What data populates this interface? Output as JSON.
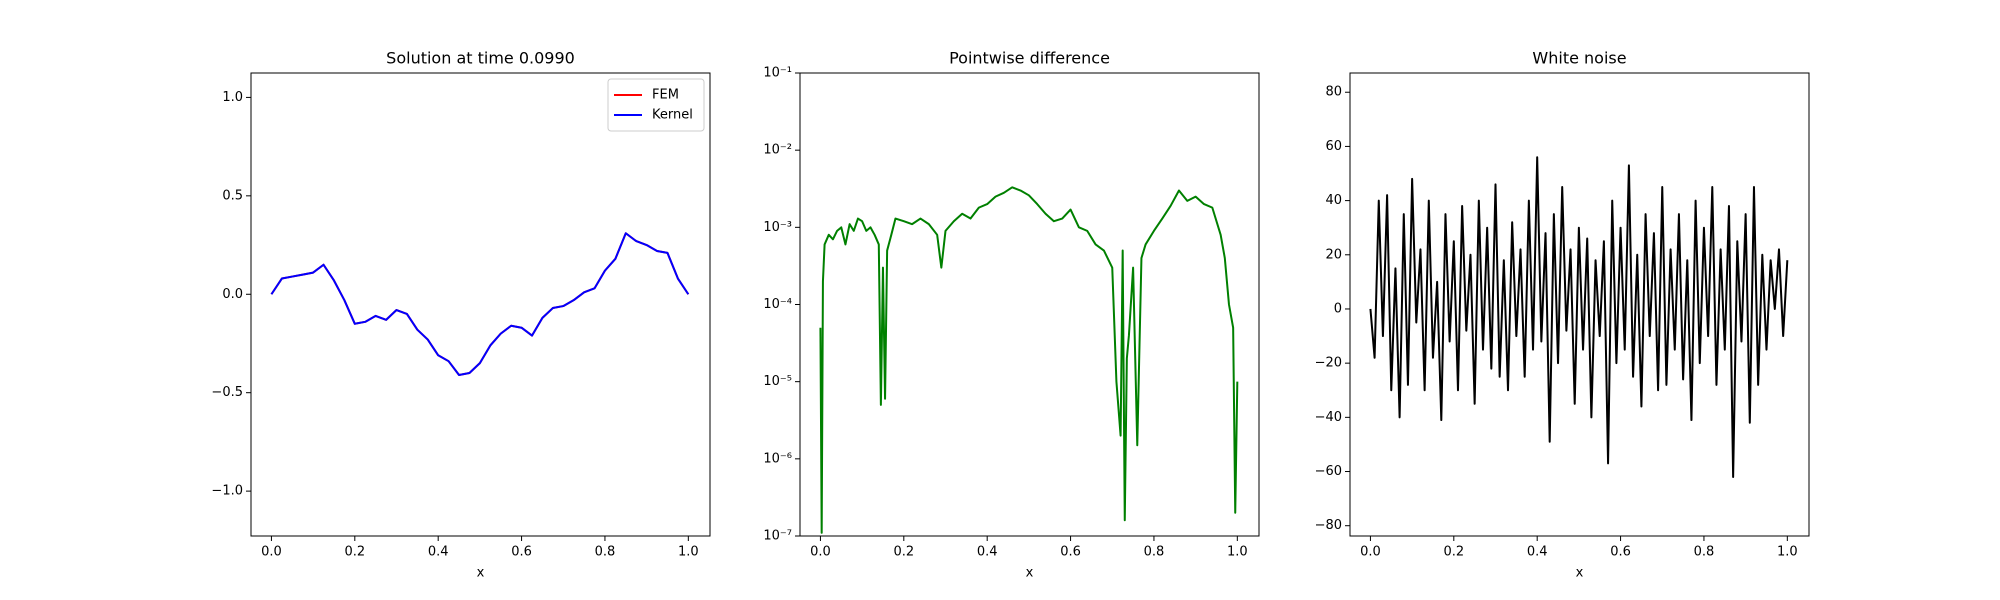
{
  "chart_data": [
    {
      "type": "line",
      "title": "Solution at time 0.0990",
      "xlabel": "x",
      "x": [
        0,
        0.025,
        0.05,
        0.075,
        0.1,
        0.125,
        0.15,
        0.175,
        0.2,
        0.225,
        0.25,
        0.275,
        0.3,
        0.325,
        0.35,
        0.375,
        0.4,
        0.425,
        0.45,
        0.475,
        0.5,
        0.525,
        0.55,
        0.575,
        0.6,
        0.625,
        0.65,
        0.675,
        0.7,
        0.725,
        0.75,
        0.775,
        0.8,
        0.825,
        0.85,
        0.875,
        0.9,
        0.925,
        0.95,
        0.975,
        1.0
      ],
      "series": [
        {
          "name": "FEM",
          "color": "#ff0000",
          "values": [
            0,
            0.08,
            0.09,
            0.1,
            0.11,
            0.15,
            0.07,
            -0.03,
            -0.15,
            -0.14,
            -0.11,
            -0.13,
            -0.08,
            -0.1,
            -0.18,
            -0.23,
            -0.31,
            -0.34,
            -0.41,
            -0.4,
            -0.35,
            -0.26,
            -0.2,
            -0.16,
            -0.17,
            -0.21,
            -0.12,
            -0.07,
            -0.06,
            -0.03,
            0.01,
            0.03,
            0.12,
            0.18,
            0.31,
            0.27,
            0.25,
            0.22,
            0.21,
            0.08,
            0
          ]
        },
        {
          "name": "Kernel",
          "color": "#0000ff",
          "values": [
            0,
            0.08,
            0.09,
            0.1,
            0.11,
            0.15,
            0.07,
            -0.03,
            -0.15,
            -0.14,
            -0.11,
            -0.13,
            -0.08,
            -0.1,
            -0.18,
            -0.23,
            -0.31,
            -0.34,
            -0.41,
            -0.4,
            -0.35,
            -0.26,
            -0.2,
            -0.16,
            -0.17,
            -0.21,
            -0.12,
            -0.07,
            -0.06,
            -0.03,
            0.01,
            0.03,
            0.12,
            0.18,
            0.31,
            0.27,
            0.25,
            0.22,
            0.21,
            0.08,
            0
          ]
        }
      ],
      "xlim": [
        -0.049,
        1.052
      ],
      "ylim": [
        -1.228,
        1.124
      ],
      "xticks": [
        {
          "value": 0,
          "label": "0.0"
        },
        {
          "value": 0.2,
          "label": "0.2"
        },
        {
          "value": 0.4,
          "label": "0.4"
        },
        {
          "value": 0.6,
          "label": "0.6"
        },
        {
          "value": 0.8,
          "label": "0.8"
        },
        {
          "value": 1,
          "label": "1.0"
        }
      ],
      "yticks": [
        {
          "value": -1,
          "label": "−1.0"
        },
        {
          "value": -0.5,
          "label": "−0.5"
        },
        {
          "value": 0,
          "label": "0.0"
        },
        {
          "value": 0.5,
          "label": "0.5"
        },
        {
          "value": 1,
          "label": "1.0"
        }
      ],
      "legend": "upper right"
    },
    {
      "type": "line",
      "title": "Pointwise difference",
      "xlabel": "x",
      "log_y": true,
      "x": [
        0,
        0.003,
        0.006,
        0.01,
        0.02,
        0.03,
        0.04,
        0.05,
        0.06,
        0.07,
        0.08,
        0.09,
        0.1,
        0.11,
        0.12,
        0.13,
        0.14,
        0.145,
        0.15,
        0.155,
        0.16,
        0.17,
        0.18,
        0.2,
        0.22,
        0.24,
        0.26,
        0.28,
        0.29,
        0.3,
        0.32,
        0.34,
        0.36,
        0.38,
        0.4,
        0.42,
        0.44,
        0.46,
        0.48,
        0.5,
        0.52,
        0.54,
        0.56,
        0.58,
        0.6,
        0.62,
        0.64,
        0.66,
        0.68,
        0.7,
        0.71,
        0.72,
        0.725,
        0.73,
        0.735,
        0.74,
        0.75,
        0.76,
        0.77,
        0.78,
        0.8,
        0.82,
        0.84,
        0.86,
        0.88,
        0.9,
        0.92,
        0.94,
        0.96,
        0.97,
        0.98,
        0.99,
        0.995,
        1.0
      ],
      "series": [
        {
          "color": "#008000",
          "values": [
            5e-05,
            1.1e-07,
            0.0002,
            0.0006,
            0.0008,
            0.0007,
            0.0009,
            0.001,
            0.0006,
            0.0011,
            0.0009,
            0.0013,
            0.0012,
            0.0009,
            0.001,
            0.0008,
            0.0006,
            5e-06,
            0.0003,
            6e-06,
            0.0005,
            0.0008,
            0.0013,
            0.0012,
            0.0011,
            0.0013,
            0.0011,
            0.0008,
            0.0003,
            0.0009,
            0.0012,
            0.0015,
            0.0013,
            0.0018,
            0.002,
            0.0025,
            0.0028,
            0.0033,
            0.003,
            0.0026,
            0.002,
            0.0015,
            0.0012,
            0.0013,
            0.0017,
            0.001,
            0.0009,
            0.0006,
            0.0005,
            0.0003,
            1e-05,
            2e-06,
            0.0005,
            1.6e-07,
            2e-05,
            4e-05,
            0.0003,
            1.5e-06,
            0.0004,
            0.0006,
            0.0009,
            0.0013,
            0.0019,
            0.003,
            0.0022,
            0.0025,
            0.002,
            0.0018,
            0.0008,
            0.0004,
            0.0001,
            5e-05,
            2e-07,
            1e-05
          ]
        }
      ],
      "xlim": [
        -0.049,
        1.052
      ],
      "ylim": [
        1e-07,
        0.1
      ],
      "xticks": [
        {
          "value": 0,
          "label": "0.0"
        },
        {
          "value": 0.2,
          "label": "0.2"
        },
        {
          "value": 0.4,
          "label": "0.4"
        },
        {
          "value": 0.6,
          "label": "0.6"
        },
        {
          "value": 0.8,
          "label": "0.8"
        },
        {
          "value": 1,
          "label": "1.0"
        }
      ],
      "yticks": [
        {
          "value": 1e-07,
          "label": "10⁻⁷"
        },
        {
          "value": 1e-06,
          "label": "10⁻⁶"
        },
        {
          "value": 1e-05,
          "label": "10⁻⁵"
        },
        {
          "value": 0.0001,
          "label": "10⁻⁴"
        },
        {
          "value": 0.001,
          "label": "10⁻³"
        },
        {
          "value": 0.01,
          "label": "10⁻²"
        },
        {
          "value": 0.1,
          "label": "10⁻¹"
        }
      ]
    },
    {
      "type": "line",
      "title": "White noise",
      "xlabel": "x",
      "x": [
        0,
        0.01,
        0.02,
        0.03,
        0.04,
        0.05,
        0.06,
        0.07,
        0.08,
        0.09,
        0.1,
        0.11,
        0.12,
        0.13,
        0.14,
        0.15,
        0.16,
        0.17,
        0.18,
        0.19,
        0.2,
        0.21,
        0.22,
        0.23,
        0.24,
        0.25,
        0.26,
        0.27,
        0.28,
        0.29,
        0.3,
        0.31,
        0.32,
        0.33,
        0.34,
        0.35,
        0.36,
        0.37,
        0.38,
        0.39,
        0.4,
        0.41,
        0.42,
        0.43,
        0.44,
        0.45,
        0.46,
        0.47,
        0.48,
        0.49,
        0.5,
        0.51,
        0.52,
        0.53,
        0.54,
        0.55,
        0.56,
        0.57,
        0.58,
        0.59,
        0.6,
        0.61,
        0.62,
        0.63,
        0.64,
        0.65,
        0.66,
        0.67,
        0.68,
        0.69,
        0.7,
        0.71,
        0.72,
        0.73,
        0.74,
        0.75,
        0.76,
        0.77,
        0.78,
        0.79,
        0.8,
        0.81,
        0.82,
        0.83,
        0.84,
        0.85,
        0.86,
        0.87,
        0.88,
        0.89,
        0.9,
        0.91,
        0.92,
        0.93,
        0.94,
        0.95,
        0.96,
        0.97,
        0.98,
        0.99,
        1.0
      ],
      "series": [
        {
          "color": "#000000",
          "values": [
            0,
            -18,
            40,
            -10,
            42,
            -30,
            15,
            -40,
            35,
            -28,
            48,
            -5,
            22,
            -30,
            40,
            -18,
            10,
            -41,
            35,
            -12,
            25,
            -30,
            38,
            -8,
            20,
            -35,
            40,
            -15,
            30,
            -22,
            46,
            -25,
            18,
            -30,
            32,
            -10,
            22,
            -25,
            40,
            -15,
            56,
            -12,
            28,
            -49,
            35,
            -20,
            45,
            -8,
            22,
            -35,
            30,
            -15,
            26,
            -40,
            18,
            -10,
            25,
            -57,
            40,
            -20,
            30,
            -15,
            53,
            -25,
            20,
            -36,
            35,
            -10,
            28,
            -30,
            45,
            -28,
            22,
            -15,
            35,
            -26,
            18,
            -41,
            40,
            -20,
            30,
            -10,
            45,
            -28,
            22,
            -15,
            38,
            -62,
            25,
            -12,
            35,
            -42,
            45,
            -28,
            20,
            -15,
            18,
            0,
            22,
            -10,
            18
          ]
        }
      ],
      "xlim": [
        -0.049,
        1.052
      ],
      "ylim": [
        -83.8,
        87.1
      ],
      "xticks": [
        {
          "value": 0,
          "label": "0.0"
        },
        {
          "value": 0.2,
          "label": "0.2"
        },
        {
          "value": 0.4,
          "label": "0.4"
        },
        {
          "value": 0.6,
          "label": "0.6"
        },
        {
          "value": 0.8,
          "label": "0.8"
        },
        {
          "value": 1,
          "label": "1.0"
        }
      ],
      "yticks": [
        {
          "value": -80,
          "label": "−80"
        },
        {
          "value": -60,
          "label": "−60"
        },
        {
          "value": -40,
          "label": "−40"
        },
        {
          "value": -20,
          "label": "−20"
        },
        0,
        20,
        40,
        60,
        80
      ]
    }
  ]
}
